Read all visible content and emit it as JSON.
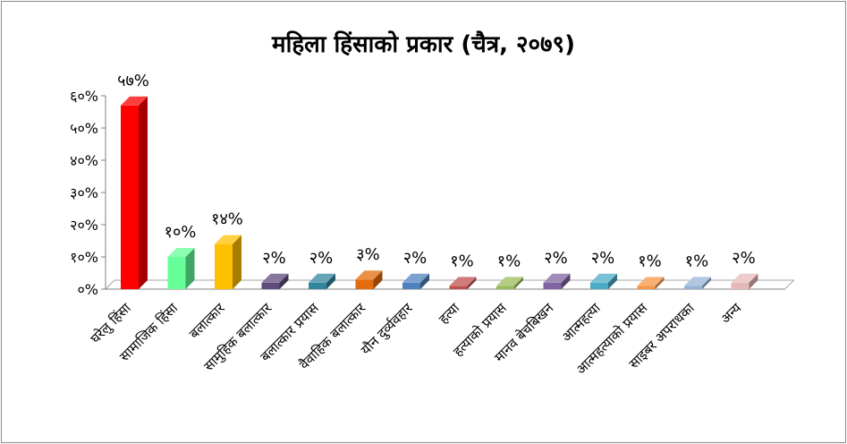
{
  "chart_data": {
    "type": "bar",
    "title": "महिला हिंसाको प्रकार (चैत्र, २०७९)",
    "xlabel": "",
    "ylabel": "",
    "ylim": [
      0,
      60
    ],
    "y_ticks": [
      "०%",
      "१०%",
      "२०%",
      "३०%",
      "४०%",
      "५०%",
      "६०%"
    ],
    "grid": false,
    "legend": "none",
    "categories": [
      "घरेलु हिंसा",
      "सामाजिक हिंसा",
      "बलात्कार",
      "सामुहिक बलात्कार",
      "बलात्कार प्रयास",
      "वैवाहिक बलात्कार",
      "यौन दुर्व्यवहार",
      "हत्या",
      "हत्याको प्रयास",
      "मानव बेचबिखन",
      "आत्महत्या",
      "आत्महत्याको प्रयास",
      "साइबर अपराधका",
      "अन्य"
    ],
    "values": [
      57,
      10,
      14,
      2,
      2,
      3,
      2,
      1,
      1,
      2,
      2,
      1,
      1,
      2
    ],
    "data_labels": [
      "५७%",
      "१०%",
      "१४%",
      "२%",
      "२%",
      "३%",
      "२%",
      "१%",
      "१%",
      "२%",
      "२%",
      "१%",
      "१%",
      "२%"
    ],
    "colors": [
      "#ff0000",
      "#66ff99",
      "#ffc000",
      "#604a7b",
      "#31859c",
      "#e46c0a",
      "#4f81bd",
      "#c0504d",
      "#9bbb59",
      "#8064a2",
      "#4bacc6",
      "#f79646",
      "#95b3d7",
      "#e6b9b8"
    ]
  }
}
